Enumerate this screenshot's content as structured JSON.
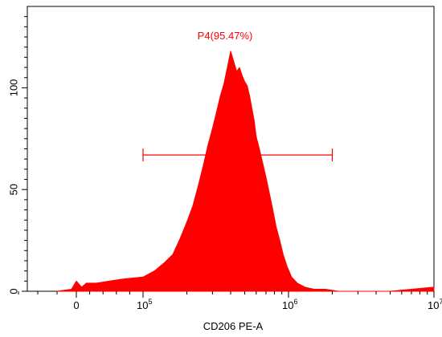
{
  "chart_data": {
    "type": "area",
    "title": "",
    "xlabel": "CD206 PE-A",
    "ylabel": "",
    "x_scale": "biexponential (linear around 0, log above 10^5)",
    "ylim": [
      0,
      140
    ],
    "y_ticks": [
      0,
      50,
      100
    ],
    "x_ticks": [
      {
        "value": 0,
        "label": "0",
        "exp": ""
      },
      {
        "value": 100000,
        "label": "10",
        "exp": "5"
      },
      {
        "value": 1000000,
        "label": "10",
        "exp": "6"
      },
      {
        "value": 10000000,
        "label": "10",
        "exp": "7"
      }
    ],
    "grid": false,
    "fill_color": "#ff0000",
    "gate": {
      "name": "P4",
      "label": "P4(95.47%)",
      "percent": 95.47,
      "x_start": 100000,
      "x_end": 2000000,
      "y_level": 67,
      "color": "#ff0000"
    },
    "series": [
      {
        "x": [
          -20000,
          -5000,
          0,
          8000,
          15000,
          30000,
          50000,
          70000,
          100000,
          120000,
          140000,
          160000,
          180000,
          200000,
          220000,
          240000,
          260000,
          280000,
          300000,
          320000,
          340000,
          360000,
          380000,
          400000,
          420000,
          440000,
          460000,
          480000,
          500000,
          520000,
          540000,
          560000,
          580000,
          600000,
          630000,
          660000,
          700000,
          740000,
          780000,
          820000,
          870000,
          920000,
          980000,
          1050000,
          1150000,
          1300000,
          1500000,
          1800000,
          2200000,
          3000000,
          5000000,
          10000000
        ],
        "y": [
          0,
          1,
          5,
          2,
          4,
          4,
          5,
          6,
          7,
          10,
          14,
          18,
          26,
          34,
          42,
          52,
          62,
          72,
          80,
          88,
          96,
          102,
          110,
          118,
          113,
          108,
          110,
          106,
          103,
          101,
          96,
          90,
          84,
          76,
          70,
          64,
          56,
          48,
          40,
          32,
          25,
          18,
          12,
          7,
          4,
          2,
          1,
          1,
          0,
          0,
          0,
          2
        ]
      }
    ]
  }
}
